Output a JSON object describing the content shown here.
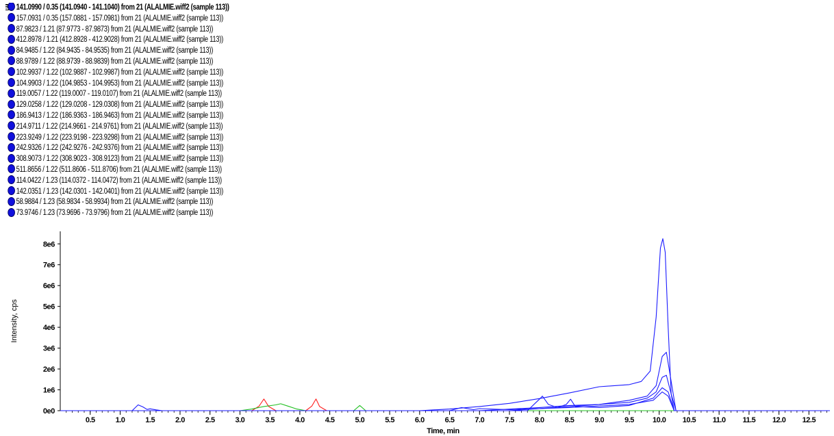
{
  "legend": {
    "collapse_glyph": "⊟",
    "entries": [
      "141.0990 / 0.35 (141.0940 - 141.1040) from 21 (ALALMIE.wiff2 (sample 113))",
      "157.0931 / 0.35 (157.0881 - 157.0981) from 21 (ALALMIE.wiff2 (sample 113))",
      "87.9823 / 1.21 (87.9773 - 87.9873) from 21 (ALALMIE.wiff2 (sample 113))",
      "412.8978 / 1.21 (412.8928 - 412.9028) from 21 (ALALMIE.wiff2 (sample 113))",
      "84.9485 / 1.22 (84.9435 - 84.9535) from 21 (ALALMIE.wiff2 (sample 113))",
      "88.9789 / 1.22 (88.9739 - 88.9839) from 21 (ALALMIE.wiff2 (sample 113))",
      "102.9937 / 1.22 (102.9887 - 102.9987) from 21 (ALALMIE.wiff2 (sample 113))",
      "104.9903 / 1.22 (104.9853 - 104.9953) from 21 (ALALMIE.wiff2 (sample 113))",
      "119.0057 / 1.22 (119.0007 - 119.0107) from 21 (ALALMIE.wiff2 (sample 113))",
      "129.0258 / 1.22 (129.0208 - 129.0308) from 21 (ALALMIE.wiff2 (sample 113))",
      "186.9413 / 1.22 (186.9363 - 186.9463) from 21 (ALALMIE.wiff2 (sample 113))",
      "214.9711 / 1.22 (214.9661 - 214.9761) from 21 (ALALMIE.wiff2 (sample 113))",
      "223.9249 / 1.22 (223.9198 - 223.9298) from 21 (ALALMIE.wiff2 (sample 113))",
      "242.9326 / 1.22 (242.9276 - 242.9376) from 21 (ALALMIE.wiff2 (sample 113))",
      "308.9073 / 1.22 (308.9023 - 308.9123) from 21 (ALALMIE.wiff2 (sample 113))",
      "511.8656 / 1.22 (511.8606 - 511.8706) from 21 (ALALMIE.wiff2 (sample 113))",
      "114.0422 / 1.23 (114.0372 - 114.0472) from 21 (ALALMIE.wiff2 (sample 113))",
      "142.0351 / 1.23 (142.0301 - 142.0401) from 21 (ALALMIE.wiff2 (sample 113))",
      "58.9884 / 1.23 (58.9834 - 58.9934) from 21 (ALALMIE.wiff2 (sample 113))",
      "73.9746 / 1.23 (73.9696 - 73.9796) from 21 (ALALMIE.wiff2 (sample 113))"
    ],
    "dot_color": "#1010dd"
  },
  "chart_data": {
    "type": "line",
    "title": "",
    "xlabel": "Time, min",
    "ylabel": "Intensity, cps",
    "xlim": [
      0,
      12.85
    ],
    "ylim": [
      0,
      8600000.0
    ],
    "x_ticks": [
      "0.5",
      "1.0",
      "1.5",
      "2.0",
      "2.5",
      "3.0",
      "3.5",
      "4.0",
      "4.5",
      "5.0",
      "5.5",
      "6.0",
      "6.5",
      "7.0",
      "7.5",
      "8.0",
      "8.5",
      "9.0",
      "9.5",
      "10.0",
      "10.5",
      "11.0",
      "11.5",
      "12.0",
      "12.5"
    ],
    "y_ticks": [
      "0e0",
      "1e6",
      "2e6",
      "3e6",
      "4e6",
      "5e6",
      "6e6",
      "7e6",
      "8e6"
    ],
    "y_tick_values": [
      0,
      1000000,
      2000000,
      3000000,
      4000000,
      5000000,
      6000000,
      7000000,
      8000000
    ],
    "x_tick_values": [
      0.5,
      1.0,
      1.5,
      2.0,
      2.5,
      3.0,
      3.5,
      4.0,
      4.5,
      5.0,
      5.5,
      6.0,
      6.5,
      7.0,
      7.5,
      8.0,
      8.5,
      9.0,
      9.5,
      10.0,
      10.5,
      11.0,
      11.5,
      12.0,
      12.5
    ],
    "grid": false,
    "legend_position": "top-left",
    "series": [
      {
        "color": "#1a1aff",
        "x": [
          0,
          1.2,
          1.3,
          1.38,
          1.45,
          1.5,
          1.6,
          1.7,
          2.0
        ],
        "y": [
          0,
          0,
          280000,
          180000,
          60000,
          90000,
          40000,
          0,
          0
        ]
      },
      {
        "color": "#ff2020",
        "x": [
          0,
          3.2,
          3.32,
          3.4,
          3.48,
          3.6,
          4.1,
          4.2,
          4.27,
          4.33,
          4.45,
          12.85
        ],
        "y": [
          0,
          0,
          220000,
          560000,
          200000,
          0,
          0,
          220000,
          560000,
          200000,
          0,
          0
        ]
      },
      {
        "color": "#20c020",
        "x": [
          0,
          3.0,
          3.2,
          3.4,
          3.6,
          3.68,
          3.8,
          3.95,
          4.1,
          4.9,
          5.0,
          5.1,
          12.85
        ],
        "y": [
          0,
          0,
          80000,
          200000,
          280000,
          330000,
          220000,
          80000,
          0,
          0,
          250000,
          0,
          0
        ]
      },
      {
        "color": "#1a1aff",
        "x": [
          0,
          6.0,
          6.5,
          7.0,
          7.5,
          8.0,
          8.5,
          9.0,
          9.5,
          9.7,
          9.85,
          9.95,
          10.02,
          10.06,
          10.1,
          10.15,
          10.2,
          10.25,
          12.85
        ],
        "y": [
          0,
          0,
          80000,
          200000,
          350000,
          580000,
          850000,
          1150000,
          1250000,
          1400000,
          1900000,
          4500000,
          7800000,
          8250000,
          7600000,
          4000000,
          800000,
          0,
          0
        ]
      },
      {
        "color": "#1a1aff",
        "x": [
          0,
          7.0,
          8.0,
          8.5,
          9.0,
          9.5,
          9.8,
          9.95,
          10.05,
          10.12,
          10.2,
          10.28,
          12.85
        ],
        "y": [
          0,
          0,
          150000,
          250000,
          300000,
          500000,
          700000,
          1200000,
          2600000,
          2800000,
          1400000,
          0,
          0
        ]
      },
      {
        "color": "#1a1aff",
        "x": [
          0,
          7.5,
          8.5,
          9.0,
          9.5,
          9.8,
          9.95,
          10.05,
          10.12,
          10.2,
          10.28,
          12.85
        ],
        "y": [
          0,
          0,
          200000,
          300000,
          400000,
          600000,
          900000,
          1600000,
          1700000,
          800000,
          0,
          0
        ]
      },
      {
        "color": "#1a1aff",
        "x": [
          0,
          7.8,
          8.0,
          8.05,
          8.15,
          8.3,
          8.45,
          8.52,
          8.6,
          9.0,
          9.5,
          9.9,
          10.05,
          10.15,
          10.25,
          12.85
        ],
        "y": [
          0,
          0,
          550000,
          700000,
          300000,
          150000,
          300000,
          550000,
          200000,
          150000,
          250000,
          600000,
          1100000,
          900000,
          0,
          0
        ]
      },
      {
        "color": "#1a1aff",
        "x": [
          0,
          6.5,
          6.7,
          6.9,
          7.0,
          7.5,
          8.5,
          9.5,
          9.9,
          10.05,
          10.15,
          10.25,
          12.85
        ],
        "y": [
          0,
          0,
          150000,
          50000,
          100000,
          50000,
          150000,
          300000,
          500000,
          900000,
          700000,
          0,
          0
        ]
      }
    ]
  }
}
